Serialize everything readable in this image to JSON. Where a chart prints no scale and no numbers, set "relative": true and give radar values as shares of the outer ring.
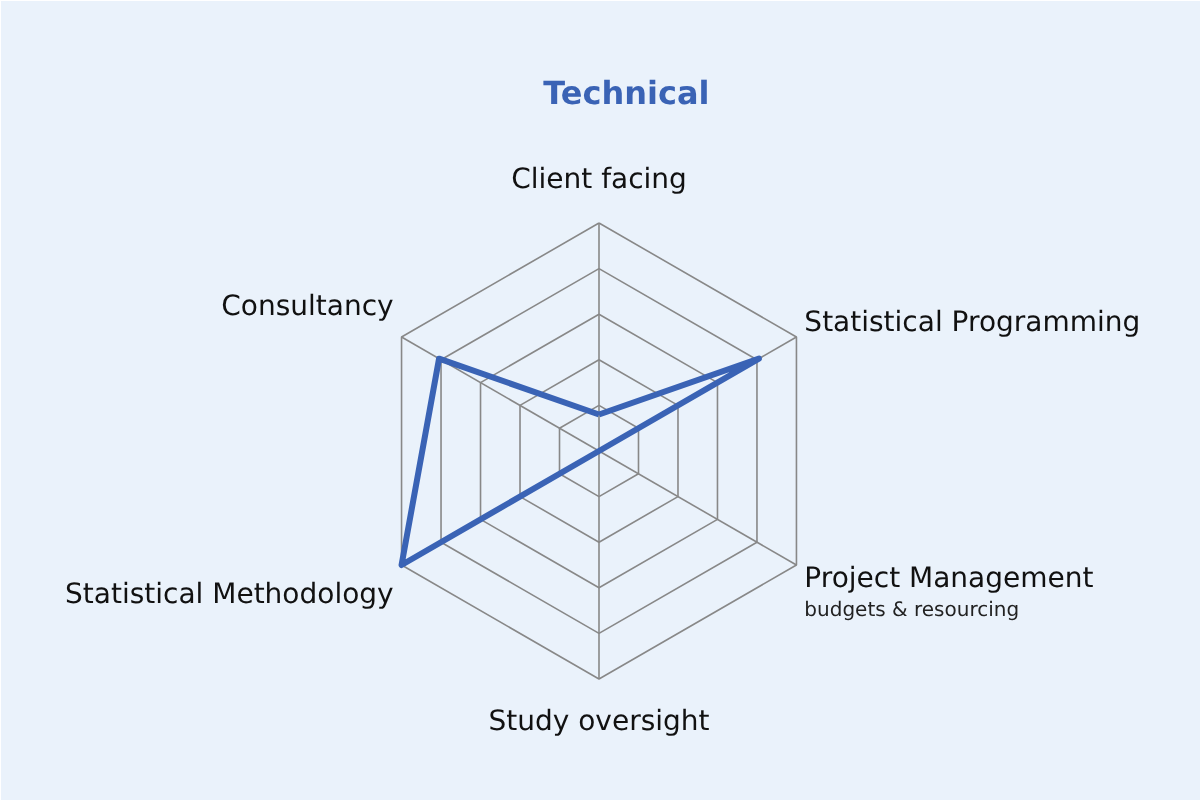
{
  "chart_data": {
    "type": "radar",
    "title": "Technical",
    "relative": true,
    "categories": [
      "Client facing",
      "Statistical Programming",
      "Project Management\nbudgets & resourcing",
      "Study oversight",
      "Statistical Methodology",
      "Consultancy"
    ],
    "series": [
      {
        "color": "#3a63b5",
        "values": [
          0.16,
          0.81,
          0,
          0,
          1,
          0.81
        ]
      }
    ]
  }
}
